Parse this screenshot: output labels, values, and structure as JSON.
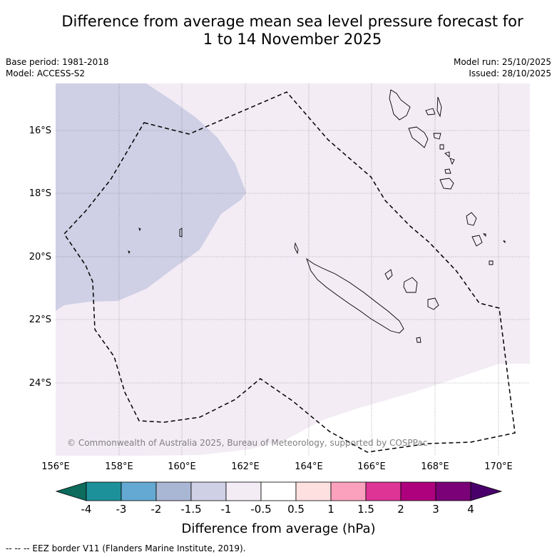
{
  "title_line1": "Difference from average mean sea level pressure forecast for",
  "title_line2": "1 to 14 November 2025",
  "base_period": "Base period: 1981-2018",
  "model": "Model: ACCESS-S2",
  "model_run": "Model run: 25/10/2025",
  "issued": "Issued: 28/10/2025",
  "map": {
    "lat_labels": [
      "16°S",
      "18°S",
      "20°S",
      "22°S",
      "24°S"
    ],
    "lon_labels": [
      "156°E",
      "158°E",
      "160°E",
      "162°E",
      "164°E",
      "166°E",
      "168°E",
      "170°E"
    ],
    "copyright": "© Commonwealth of Australia 2025, Bureau of Meteorology, supported by COSPPac"
  },
  "colorbar": {
    "ticks": [
      "-4",
      "-3",
      "-2",
      "-1.5",
      "-1",
      "-0.5",
      "0.5",
      "1",
      "1.5",
      "2",
      "3",
      "4"
    ],
    "colors": [
      "#0c6b5c",
      "#1d9199",
      "#64a9d3",
      "#a9b7d4",
      "#cfcfe5",
      "#f3ecf5",
      "#ffffff",
      "#fee0e0",
      "#fba1bd",
      "#dd3496",
      "#ae017e",
      "#7a0177",
      "#49006a"
    ],
    "label": "Difference from average (hPa)"
  },
  "legend_note": "--  --  -- EEZ border V11 (Flanders Marine Institute, 2019)."
}
